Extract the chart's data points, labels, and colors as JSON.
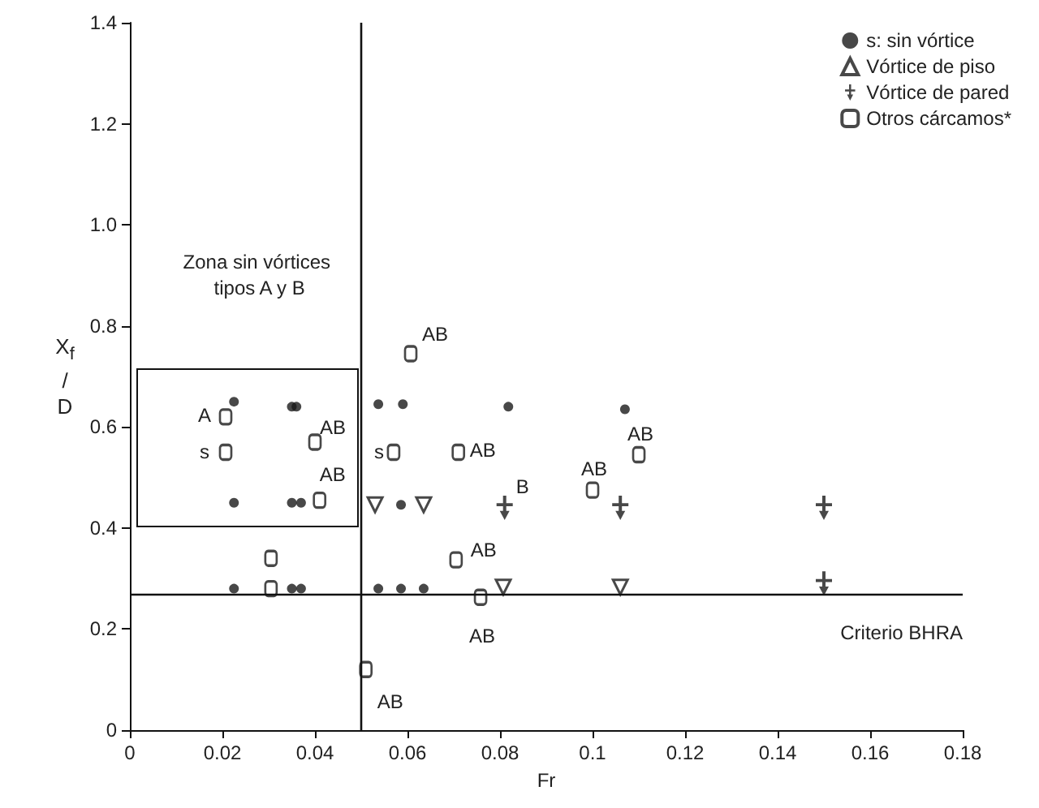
{
  "chart_data": {
    "type": "scatter",
    "xlabel": "Fr",
    "ylabel": "X$_{f}$ / D",
    "xlim": [
      0,
      0.18
    ],
    "xticks": [
      0,
      0.02,
      0.04,
      0.06,
      0.08,
      0.1,
      0.12,
      0.14,
      0.16,
      0.18
    ],
    "ylim": [
      0,
      1.4
    ],
    "yticks": [
      0,
      0.2,
      0.4,
      0.6,
      0.8,
      {
        "value": 1,
        "label": "1.0"
      },
      1.2,
      1.4
    ],
    "grid": false,
    "legend": "top right",
    "series": [
      {
        "name": "s: sin vórtice",
        "color": "#1a1a1a",
        "marker": "circle",
        "x": [
          0.0225,
          0.035,
          0.036,
          0.0225,
          0.035,
          0.037,
          0.0225,
          0.035,
          0.037,
          0.0537,
          0.059,
          0.0586,
          0.0537,
          0.0586,
          0.0635,
          0.0818,
          0.107
        ],
        "values": [
          0.65,
          0.64,
          0.64,
          0.45,
          0.45,
          0.45,
          0.28,
          0.28,
          0.28,
          0.645,
          0.645,
          0.446,
          0.28,
          0.28,
          0.28,
          0.64,
          0.635
        ]
      },
      {
        "name": "Vórtice de piso",
        "color": "#1a1a1a",
        "marker": "triangle",
        "x": [
          0.053,
          0.0635,
          0.0807,
          0.106
        ],
        "values": [
          0.446,
          0.446,
          0.283,
          0.283
        ]
      },
      {
        "name": "Vórtice de pared",
        "color": "#1a1a1a",
        "marker": "cross",
        "x": [
          0.081,
          0.106,
          0.15,
          0.15
        ],
        "values": [
          0.44,
          0.44,
          0.44,
          0.29
        ]
      },
      {
        "name": "Otros cárcamos*",
        "color": "#1a1a1a",
        "marker": "square",
        "x": [
          0.0207,
          0.0207,
          0.04,
          0.041,
          0.0305,
          0.0305,
          0.051,
          0.057,
          0.0607,
          0.071,
          0.0705,
          0.0758,
          0.1,
          0.11
        ],
        "values": [
          0.62,
          0.55,
          0.57,
          0.455,
          0.34,
          0.28,
          0.12,
          0.55,
          0.745,
          0.55,
          0.337,
          0.263,
          0.475,
          0.545
        ]
      }
    ],
    "ref_lines": [
      {
        "axis": "x",
        "value": 0.05,
        "label": null
      },
      {
        "axis": "y",
        "value": 0.265,
        "label": "Criterio BHRA"
      }
    ],
    "annotations": [
      "Zona sin vórtices tipos A y B",
      {
        "text": "A",
        "x": 0.0207,
        "y": 0.62
      },
      {
        "text": "s",
        "x": 0.0207,
        "y": 0.55
      },
      {
        "text": "AB",
        "x": 0.04,
        "y": 0.57
      },
      {
        "text": "AB",
        "x": 0.041,
        "y": 0.455
      },
      {
        "text": "s",
        "x": 0.057,
        "y": 0.55
      },
      {
        "text": "AB",
        "x": 0.0607,
        "y": 0.745
      },
      {
        "text": "AB",
        "x": 0.071,
        "y": 0.55
      },
      {
        "text": "AB",
        "x": 0.0705,
        "y": 0.337
      },
      {
        "text": "AB",
        "x": 0.0758,
        "y": 0.263
      },
      {
        "text": "B",
        "x": 0.081,
        "y": 0.44
      },
      {
        "text": "AB",
        "x": 0.1,
        "y": 0.475
      },
      {
        "text": "AB",
        "x": 0.11,
        "y": 0.545
      },
      {
        "text": "AB",
        "x": 0.051,
        "y": 0.12
      }
    ]
  }
}
